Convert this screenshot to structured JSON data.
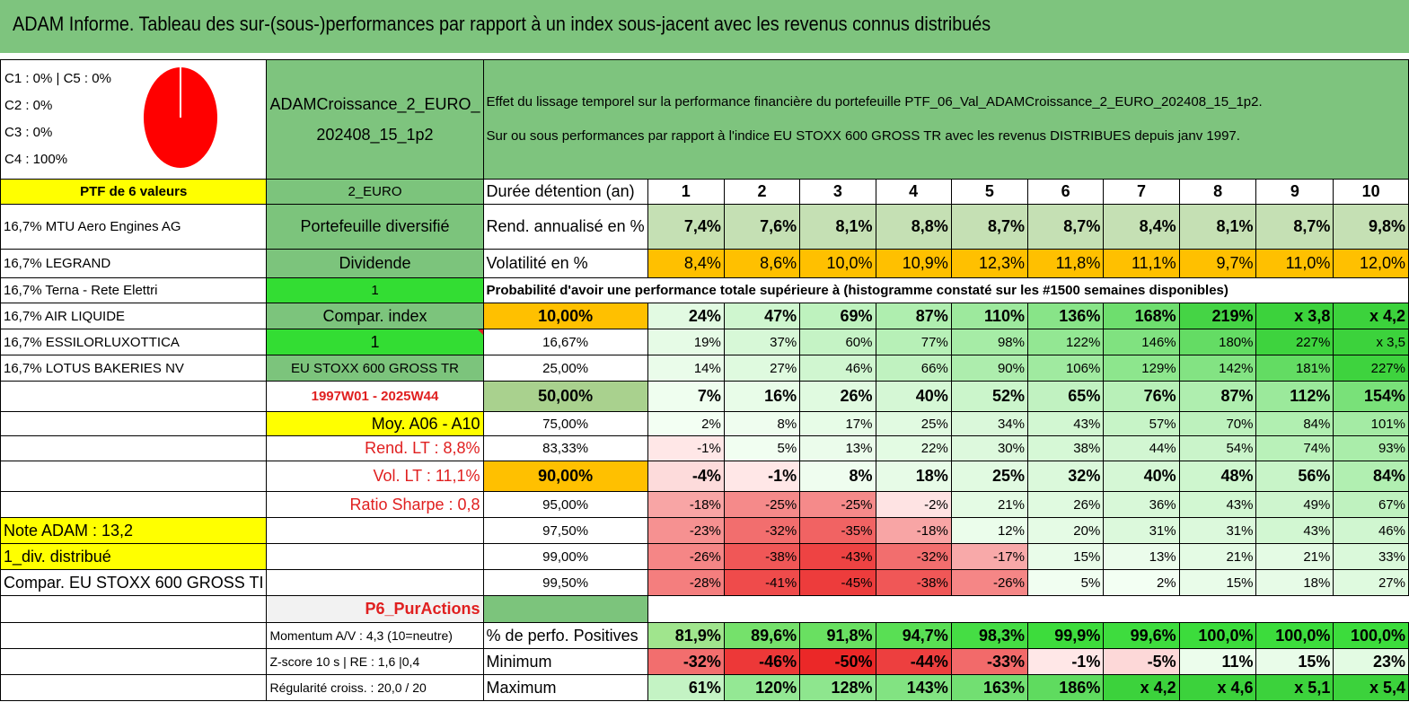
{
  "header": {
    "title": "ADAM Informe. Tableau des sur-(sous-)performances par rapport à un index sous-jacent avec les revenus connus distribués"
  },
  "allocation": {
    "labels": [
      "C1 : 0% | C5 : 0%",
      "C2 : 0%",
      "C3 : 0%",
      "C4 : 100%"
    ],
    "pie_share_c4": 1.0,
    "pie_color": "#ff0000"
  },
  "portfolio": {
    "name_line1": "ADAMCroissance_2_EURO_",
    "name_line2": "202408_15_1p2",
    "description_line1": "Effet du lissage temporel sur la performance financière du portefeuille PTF_06_Val_ADAMCroissance_2_EURO_202408_15_1p2.",
    "description_line2": "Sur ou sous performances par rapport à l'indice EU STOXX 600 GROSS TR avec les revenus DISTRIBUES depuis janv 1997.",
    "count_label": "PTF de 6 valeurs",
    "code": "2_EURO"
  },
  "holdings": [
    "16,7% MTU Aero Engines AG",
    "16,7% LEGRAND",
    "16,7% Terna - Rete Elettri",
    "16,7% AIR LIQUIDE",
    "16,7% ESSILORLUXOTTICA",
    "16,7% LOTUS BAKERIES NV"
  ],
  "info": {
    "diversified": "Portefeuille diversifié",
    "dividend": "Dividende",
    "dividend_value": "1",
    "compar_index": "Compar. index",
    "compar_value": "1",
    "index_name": "EU STOXX 600 GROSS TR",
    "period": "1997W01 - 2025W44",
    "moy": "Moy. A06 - A10",
    "rend_lt": "Rend. LT : 8,8%",
    "vol_lt": "Vol. LT : 11,1%",
    "sharpe": "Ratio Sharpe : 0,8",
    "note": "Note ADAM : 13,2",
    "div": "1_div. distribué",
    "compar_full": "Compar. EU STOXX 600 GROSS TI",
    "p6": "P6_PurActions",
    "momentum": "Momentum A/V : 4,3 (10=neutre)",
    "zscore": "Z-score 10 s | RE : 1,6 |0,4",
    "regularite": "Régularité croiss. : 20,0 / 20"
  },
  "table": {
    "duration_label": "Durée détention (an)",
    "durations": [
      "1",
      "2",
      "3",
      "4",
      "5",
      "6",
      "7",
      "8",
      "9",
      "10"
    ],
    "rend_label": "Rend. annualisé en %",
    "rend": [
      "7,4%",
      "7,6%",
      "8,1%",
      "8,8%",
      "8,7%",
      "8,7%",
      "8,4%",
      "8,1%",
      "8,7%",
      "9,8%"
    ],
    "vol_label": "Volatilité en %",
    "vol": [
      "8,4%",
      "8,6%",
      "10,0%",
      "10,9%",
      "12,3%",
      "11,8%",
      "11,1%",
      "9,7%",
      "11,0%",
      "12,0%"
    ],
    "prob_title": "Probabilité d'avoir une performance totale supérieure à (histogramme constaté sur les #1500 semaines disponibles)",
    "prob_rows": [
      {
        "p": "10,00%",
        "v": [
          "24%",
          "47%",
          "69%",
          "87%",
          "110%",
          "136%",
          "168%",
          "219%",
          "x 3,8",
          "x 4,2"
        ]
      },
      {
        "p": "16,67%",
        "v": [
          "19%",
          "37%",
          "60%",
          "77%",
          "98%",
          "122%",
          "146%",
          "180%",
          "227%",
          "x 3,5"
        ]
      },
      {
        "p": "25,00%",
        "v": [
          "14%",
          "27%",
          "46%",
          "66%",
          "90%",
          "106%",
          "129%",
          "142%",
          "181%",
          "227%"
        ]
      },
      {
        "p": "50,00%",
        "v": [
          "7%",
          "16%",
          "26%",
          "40%",
          "52%",
          "65%",
          "76%",
          "87%",
          "112%",
          "154%"
        ]
      },
      {
        "p": "75,00%",
        "v": [
          "2%",
          "8%",
          "17%",
          "25%",
          "34%",
          "43%",
          "57%",
          "70%",
          "84%",
          "101%"
        ]
      },
      {
        "p": "83,33%",
        "v": [
          "-1%",
          "5%",
          "13%",
          "22%",
          "30%",
          "38%",
          "44%",
          "54%",
          "74%",
          "93%"
        ]
      },
      {
        "p": "90,00%",
        "v": [
          "-4%",
          "-1%",
          "8%",
          "18%",
          "25%",
          "32%",
          "40%",
          "48%",
          "56%",
          "84%"
        ]
      },
      {
        "p": "95,00%",
        "v": [
          "-18%",
          "-25%",
          "-25%",
          "-2%",
          "21%",
          "26%",
          "36%",
          "43%",
          "49%",
          "67%"
        ]
      },
      {
        "p": "97,50%",
        "v": [
          "-23%",
          "-32%",
          "-35%",
          "-18%",
          "12%",
          "20%",
          "31%",
          "31%",
          "43%",
          "46%"
        ]
      },
      {
        "p": "99,00%",
        "v": [
          "-26%",
          "-38%",
          "-43%",
          "-32%",
          "-17%",
          "15%",
          "13%",
          "21%",
          "21%",
          "33%"
        ]
      },
      {
        "p": "99,50%",
        "v": [
          "-28%",
          "-41%",
          "-45%",
          "-38%",
          "-26%",
          "5%",
          "2%",
          "15%",
          "18%",
          "27%"
        ]
      }
    ],
    "pos_label": "% de perfo. Positives",
    "pos": [
      "81,9%",
      "89,6%",
      "91,8%",
      "94,7%",
      "98,3%",
      "99,9%",
      "99,6%",
      "100,0%",
      "100,0%",
      "100,0%"
    ],
    "min_label": "Minimum",
    "min": [
      "-32%",
      "-46%",
      "-50%",
      "-44%",
      "-33%",
      "-1%",
      "-5%",
      "11%",
      "15%",
      "23%"
    ],
    "max_label": "Maximum",
    "max": [
      "61%",
      "120%",
      "128%",
      "143%",
      "163%",
      "186%",
      "x 4,2",
      "x 4,6",
      "x 5,1",
      "x 5,4"
    ]
  }
}
